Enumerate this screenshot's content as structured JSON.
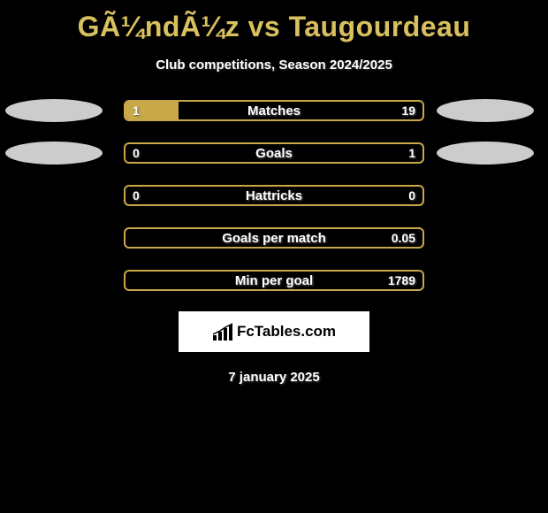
{
  "title": "GÃ¼ndÃ¼z vs Taugourdeau",
  "subtitle": "Club competitions, Season 2024/2025",
  "date": "7 january 2025",
  "logo_text": "FcTables.com",
  "colors": {
    "title": "#d9c05f",
    "accent_yellow": "#c9a84a",
    "ellipse_gray": "#cccccc",
    "bar_border": "#c9a84a",
    "background": "#000000"
  },
  "stats": [
    {
      "label": "Matches",
      "left_val": "1",
      "right_val": "19",
      "left_fill_pct": 18,
      "right_fill_pct": 0,
      "left_fill_color": "#c9a84a",
      "right_fill_color": "transparent",
      "ellipse_left_color": "#cccccc",
      "ellipse_right_color": "#cccccc",
      "show_left_ellipse": true,
      "show_right_ellipse": true
    },
    {
      "label": "Goals",
      "left_val": "0",
      "right_val": "1",
      "left_fill_pct": 0,
      "right_fill_pct": 0,
      "left_fill_color": "transparent",
      "right_fill_color": "transparent",
      "ellipse_left_color": "#cccccc",
      "ellipse_right_color": "#cccccc",
      "show_left_ellipse": true,
      "show_right_ellipse": true
    },
    {
      "label": "Hattricks",
      "left_val": "0",
      "right_val": "0",
      "left_fill_pct": 0,
      "right_fill_pct": 0,
      "left_fill_color": "transparent",
      "right_fill_color": "transparent",
      "show_left_ellipse": false,
      "show_right_ellipse": false
    },
    {
      "label": "Goals per match",
      "left_val": "",
      "right_val": "0.05",
      "left_fill_pct": 0,
      "right_fill_pct": 0,
      "left_fill_color": "transparent",
      "right_fill_color": "transparent",
      "show_left_ellipse": false,
      "show_right_ellipse": false
    },
    {
      "label": "Min per goal",
      "left_val": "",
      "right_val": "1789",
      "left_fill_pct": 0,
      "right_fill_pct": 0,
      "left_fill_color": "transparent",
      "right_fill_color": "transparent",
      "show_left_ellipse": false,
      "show_right_ellipse": false
    }
  ]
}
